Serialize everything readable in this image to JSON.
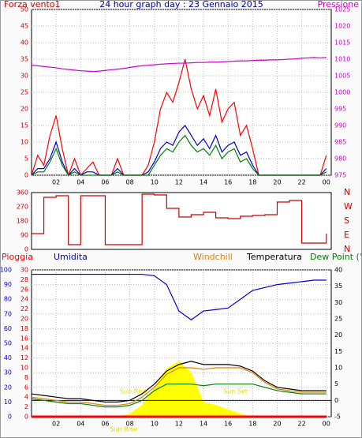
{
  "chart_data": [
    {
      "type": "line",
      "title": "24 hour graph day : 23 Gennaio 2015",
      "y_label": "Forza vento1",
      "y2_label": "Pressione",
      "x": [
        0,
        0.5,
        1,
        1.5,
        2,
        2.5,
        3,
        3.5,
        4,
        4.5,
        5,
        5.5,
        6,
        6.5,
        7,
        7.5,
        8,
        8.5,
        9,
        9.5,
        10,
        10.5,
        11,
        11.5,
        12,
        12.5,
        13,
        13.5,
        14,
        14.5,
        15,
        15.5,
        16,
        16.5,
        17,
        17.5,
        18,
        18.5,
        19,
        19.5,
        20,
        20.5,
        21,
        21.5,
        22,
        22.5,
        23,
        23.5,
        24
      ],
      "series": [
        {
          "color": "#ff0000",
          "values": [
            0,
            6,
            3,
            12,
            18,
            8,
            0,
            5,
            0,
            2,
            4,
            0,
            0,
            0,
            5,
            0,
            0,
            0,
            0,
            3,
            10,
            20,
            25,
            22,
            28,
            35,
            26,
            20,
            24,
            18,
            26,
            16,
            20,
            22,
            12,
            15,
            8,
            0,
            0,
            0,
            0,
            0,
            0,
            0,
            0,
            0,
            0,
            0,
            6
          ]
        },
        {
          "color": "#0000cc",
          "values": [
            0,
            2,
            2,
            5,
            10,
            4,
            0,
            2,
            0,
            1,
            1,
            0,
            0,
            0,
            2,
            0,
            0,
            0,
            0,
            1,
            4,
            8,
            10,
            9,
            13,
            15,
            12,
            9,
            11,
            8,
            12,
            7,
            9,
            10,
            6,
            7,
            3,
            0,
            0,
            0,
            0,
            0,
            0,
            0,
            0,
            0,
            0,
            0,
            2
          ]
        },
        {
          "color": "#008000",
          "values": [
            0,
            1,
            1,
            4,
            8,
            3,
            0,
            1,
            0,
            0,
            0,
            0,
            0,
            0,
            1,
            0,
            0,
            0,
            0,
            0,
            3,
            6,
            8,
            7,
            10,
            12,
            9,
            7,
            8,
            6,
            9,
            5,
            7,
            8,
            4,
            5,
            2,
            0,
            0,
            0,
            0,
            0,
            0,
            0,
            0,
            0,
            0,
            0,
            1
          ]
        },
        {
          "color": "#cc00cc",
          "axis": "y2",
          "values": [
            1008.2,
            1008,
            1007.8,
            1007.6,
            1007.4,
            1007.1,
            1006.9,
            1006.7,
            1006.5,
            1006.4,
            1006.3,
            1006.4,
            1006.6,
            1006.8,
            1007,
            1007.2,
            1007.5,
            1007.8,
            1008,
            1008.2,
            1008.3,
            1008.5,
            1008.6,
            1008.7,
            1008.8,
            1008.8,
            1008.9,
            1009,
            1009,
            1009.1,
            1009.1,
            1009.2,
            1009.3,
            1009.4,
            1009.5,
            1009.5,
            1009.6,
            1009.7,
            1009.7,
            1009.8,
            1009.8,
            1009.9,
            1010,
            1010.1,
            1010.3,
            1010.4,
            1010.5,
            1010.4,
            1010.5
          ]
        }
      ],
      "xlim": [
        0,
        24.4
      ],
      "xticks": [
        {
          "value": 2,
          "label": "02"
        },
        {
          "value": 4,
          "label": "04"
        },
        {
          "value": 6,
          "label": "06"
        },
        {
          "value": 8,
          "label": "08"
        },
        {
          "value": 10,
          "label": "10"
        },
        12,
        14,
        16,
        18,
        20,
        22,
        {
          "value": 24,
          "label": "00"
        }
      ],
      "ylim": [
        0,
        50
      ],
      "yticks": [
        0,
        5,
        10,
        15,
        20,
        25,
        30,
        35,
        40,
        45,
        50
      ],
      "y2lim": [
        975,
        1025
      ],
      "y2ticks": [
        975,
        980,
        985,
        990,
        995,
        1000,
        1005,
        1010,
        1015,
        1020,
        1025
      ],
      "grid": true
    },
    {
      "type": "line",
      "x": [
        0,
        1,
        2,
        3,
        4,
        5,
        6,
        7,
        8,
        9,
        10,
        11,
        12,
        13,
        14,
        15,
        16,
        17,
        18,
        19,
        20,
        21,
        22,
        23,
        24
      ],
      "series": [
        {
          "color": "#cc0000",
          "step": true,
          "values": [
            100,
            330,
            340,
            30,
            340,
            340,
            30,
            30,
            30,
            350,
            345,
            260,
            205,
            220,
            235,
            200,
            195,
            210,
            215,
            220,
            300,
            310,
            40,
            40,
            100
          ]
        }
      ],
      "xlim": [
        0,
        24.4
      ],
      "ylim": [
        0,
        360
      ],
      "yticks": [
        0,
        90,
        180,
        270,
        360
      ],
      "y2lim": [
        0,
        360
      ],
      "y2ticks": [
        {
          "value": 0,
          "label": "N"
        },
        {
          "value": 90,
          "label": "E"
        },
        {
          "value": 180,
          "label": "S"
        },
        {
          "value": 270,
          "label": "W"
        },
        {
          "value": 360,
          "label": "N"
        }
      ],
      "grid": false
    },
    {
      "type": "line",
      "x": [
        0,
        1,
        2,
        3,
        4,
        5,
        6,
        7,
        8,
        9,
        10,
        11,
        12,
        13,
        14,
        15,
        16,
        17,
        18,
        19,
        20,
        21,
        22,
        23,
        24
      ],
      "series": [
        {
          "name": "Pioggia",
          "color": "#ff0000",
          "axis": "y3",
          "values": [
            0,
            0,
            0,
            0,
            0,
            0,
            0,
            0,
            0,
            0,
            0,
            0,
            0,
            0,
            0,
            0,
            0,
            0,
            0,
            0,
            0,
            0,
            0,
            0,
            0
          ]
        },
        {
          "name": "Umidita",
          "color": "#0000cc",
          "values": [
            97,
            97,
            97,
            97,
            97,
            97,
            97,
            97,
            97,
            97,
            96,
            90,
            72,
            66,
            72,
            73,
            74,
            80,
            86,
            88,
            90,
            91,
            92,
            93,
            93
          ]
        },
        {
          "name": "Windchill",
          "color": "#e08000",
          "axis": "y2",
          "values": [
            1,
            0.5,
            0,
            -0.5,
            -0.5,
            -1,
            -1.5,
            -1.5,
            -1,
            1,
            4,
            8,
            10,
            10,
            9.5,
            10,
            10,
            10,
            8.5,
            5.5,
            3.5,
            3,
            2.5,
            2.5,
            2.5
          ]
        },
        {
          "name": "Temperatura",
          "color": "#000000",
          "axis": "y2",
          "values": [
            2,
            1.5,
            1,
            0.5,
            0.5,
            0,
            -0.5,
            -0.5,
            0,
            2,
            5,
            9,
            11,
            12,
            11,
            11,
            11,
            10.5,
            9,
            6,
            4,
            3.5,
            3,
            3,
            3
          ]
        },
        {
          "name": "Dew Point (°C",
          "color": "#008000",
          "axis": "y2",
          "values": [
            0.5,
            0,
            -0.5,
            -1,
            -1,
            -1.5,
            -2,
            -2,
            -1.5,
            0,
            3,
            5,
            5,
            5,
            4.5,
            5,
            5,
            5,
            5,
            4,
            3,
            2.5,
            2,
            2,
            2
          ]
        }
      ],
      "solar": {
        "color": "#ffff00",
        "values": [
          0,
          0,
          0,
          0,
          0,
          0,
          0,
          0,
          2,
          8,
          20,
          33,
          38,
          30,
          10,
          8,
          5,
          2,
          0,
          0,
          0,
          0,
          0,
          0,
          0
        ]
      },
      "hline_y2": 0,
      "annotations": [
        {
          "text": "Sun Rise",
          "x": 8.3
        },
        {
          "text": "Sun Set",
          "x": 16.6
        },
        {
          "text": "Sun Rise",
          "x": 7.5
        }
      ],
      "xlim": [
        0,
        24.4
      ],
      "xticks": [
        {
          "value": 2,
          "label": "02"
        },
        {
          "value": 4,
          "label": "04"
        },
        {
          "value": 6,
          "label": "06"
        },
        {
          "value": 8,
          "label": "08"
        },
        {
          "value": 10,
          "label": "10"
        },
        12,
        14,
        16,
        18,
        20,
        22,
        {
          "value": 24,
          "label": "00"
        }
      ],
      "ylim": [
        0,
        100
      ],
      "yticks": [
        0,
        10,
        20,
        30,
        40,
        50,
        60,
        70,
        80,
        90,
        100
      ],
      "y2lim": [
        -5,
        40
      ],
      "y2ticks": [
        -5,
        0,
        5,
        10,
        15,
        20,
        25,
        30,
        35,
        40
      ],
      "y3lim": [
        0,
        30
      ],
      "y3ticks": [
        0,
        2,
        4,
        6,
        8,
        10,
        12,
        14,
        16,
        18,
        20,
        22,
        24,
        26,
        28,
        30
      ],
      "grid": true
    }
  ]
}
